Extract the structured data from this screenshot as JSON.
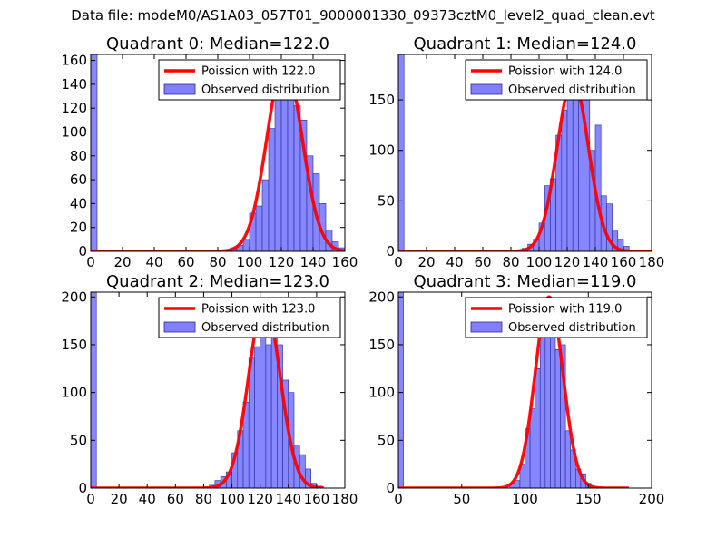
{
  "figure": {
    "suptitle": "Data file: modeM0/AS1A03_057T01_9000001330_09373cztM0_level2_quad_clean.evt"
  },
  "colors": {
    "hist_fill": "#8080ff",
    "hist_edge": "#2b2b8f",
    "poisson_line": "#ff0000"
  },
  "chart_data": [
    {
      "type": "bar",
      "title": "Quadrant 0: Median=122.0",
      "xlim": [
        0,
        160
      ],
      "ylim": [
        0,
        165
      ],
      "xticks": [
        0,
        20,
        40,
        60,
        80,
        100,
        120,
        140,
        160
      ],
      "yticks": [
        0,
        20,
        40,
        60,
        80,
        100,
        120,
        140,
        160
      ],
      "legend_position": "top-right",
      "legend": [
        "Poission with 122.0",
        "Observed distribution"
      ],
      "bin_width": 4,
      "bins": [
        [
          0,
          165
        ],
        [
          88,
          3
        ],
        [
          92,
          5
        ],
        [
          96,
          10
        ],
        [
          100,
          32
        ],
        [
          104,
          38
        ],
        [
          108,
          60
        ],
        [
          112,
          103
        ],
        [
          116,
          136
        ],
        [
          120,
          153
        ],
        [
          124,
          138
        ],
        [
          128,
          122
        ],
        [
          132,
          110
        ],
        [
          136,
          80
        ],
        [
          140,
          65
        ],
        [
          144,
          40
        ],
        [
          148,
          18
        ],
        [
          152,
          8
        ],
        [
          156,
          3
        ]
      ],
      "poisson": {
        "mu": 122,
        "peak": 158,
        "x_range": [
          0,
          160
        ]
      }
    },
    {
      "type": "bar",
      "title": "Quadrant 1: Median=124.0",
      "xlim": [
        0,
        180
      ],
      "ylim": [
        0,
        195
      ],
      "xticks": [
        0,
        20,
        40,
        60,
        80,
        100,
        120,
        140,
        160,
        180
      ],
      "yticks": [
        0,
        50,
        100,
        150
      ],
      "legend_position": "top-right",
      "legend": [
        "Poission with 124.0",
        "Observed distribution"
      ],
      "bin_width": 4,
      "bins": [
        [
          0,
          195
        ],
        [
          88,
          3
        ],
        [
          92,
          7
        ],
        [
          96,
          12
        ],
        [
          100,
          28
        ],
        [
          104,
          65
        ],
        [
          108,
          72
        ],
        [
          112,
          115
        ],
        [
          116,
          140
        ],
        [
          120,
          190
        ],
        [
          124,
          162
        ],
        [
          128,
          150
        ],
        [
          132,
          152
        ],
        [
          136,
          100
        ],
        [
          140,
          125
        ],
        [
          144,
          55
        ],
        [
          148,
          47
        ],
        [
          152,
          20
        ],
        [
          156,
          12
        ],
        [
          160,
          5
        ]
      ],
      "poisson": {
        "mu": 124,
        "peak": 170,
        "x_range": [
          0,
          180
        ]
      }
    },
    {
      "type": "bar",
      "title": "Quadrant 2: Median=123.0",
      "xlim": [
        0,
        180
      ],
      "ylim": [
        0,
        205
      ],
      "xticks": [
        0,
        20,
        40,
        60,
        80,
        100,
        120,
        140,
        160,
        180
      ],
      "yticks": [
        0,
        50,
        100,
        150,
        200
      ],
      "legend_position": "top-right",
      "legend": [
        "Poission with 123.0",
        "Observed distribution"
      ],
      "bin_width": 4,
      "bins": [
        [
          0,
          205
        ],
        [
          84,
          3
        ],
        [
          88,
          8
        ],
        [
          92,
          12
        ],
        [
          96,
          17
        ],
        [
          100,
          37
        ],
        [
          104,
          60
        ],
        [
          108,
          90
        ],
        [
          112,
          136
        ],
        [
          116,
          148
        ],
        [
          120,
          185
        ],
        [
          124,
          150
        ],
        [
          128,
          158
        ],
        [
          132,
          150
        ],
        [
          136,
          113
        ],
        [
          140,
          100
        ],
        [
          144,
          45
        ],
        [
          148,
          35
        ],
        [
          152,
          20
        ],
        [
          156,
          5
        ],
        [
          160,
          2
        ]
      ],
      "poisson": {
        "mu": 123,
        "peak": 195,
        "x_range": [
          0,
          165
        ]
      }
    },
    {
      "type": "bar",
      "title": "Quadrant 3: Median=119.0",
      "xlim": [
        0,
        200
      ],
      "ylim": [
        0,
        205
      ],
      "xticks": [
        0,
        50,
        100,
        150,
        200
      ],
      "yticks": [
        0,
        50,
        100,
        150,
        200
      ],
      "legend_position": "top-right",
      "legend": [
        "Poission with 119.0",
        "Observed distribution"
      ],
      "bin_width": 4,
      "bins": [
        [
          0,
          205
        ],
        [
          88,
          5
        ],
        [
          92,
          8
        ],
        [
          96,
          25
        ],
        [
          100,
          62
        ],
        [
          104,
          83
        ],
        [
          108,
          125
        ],
        [
          112,
          190
        ],
        [
          116,
          190
        ],
        [
          120,
          160
        ],
        [
          124,
          145
        ],
        [
          128,
          150
        ],
        [
          132,
          60
        ],
        [
          136,
          40
        ],
        [
          140,
          20
        ],
        [
          144,
          15
        ],
        [
          148,
          5
        ]
      ],
      "poisson": {
        "mu": 119,
        "peak": 200,
        "x_range": [
          0,
          182
        ]
      }
    }
  ]
}
